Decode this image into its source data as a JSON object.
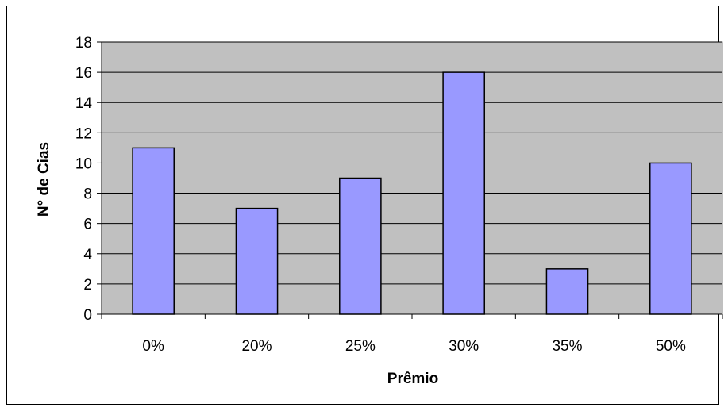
{
  "chart_data": {
    "type": "bar",
    "title": "",
    "xlabel": "Prêmio",
    "ylabel": "N° de Cias",
    "categories": [
      "0%",
      "20%",
      "25%",
      "30%",
      "35%",
      "50%"
    ],
    "values": [
      11,
      7,
      9,
      16,
      3,
      10
    ],
    "ylim": [
      0,
      18
    ],
    "yticks": [
      "0",
      "2",
      "4",
      "6",
      "8",
      "10",
      "12",
      "14",
      "16",
      "18"
    ],
    "grid": true,
    "legend": "none",
    "colors": {
      "plot_background": "#c0c0c0",
      "bar_fill": "#9999ff",
      "bar_stroke": "#000000",
      "gridline": "#000000"
    }
  }
}
